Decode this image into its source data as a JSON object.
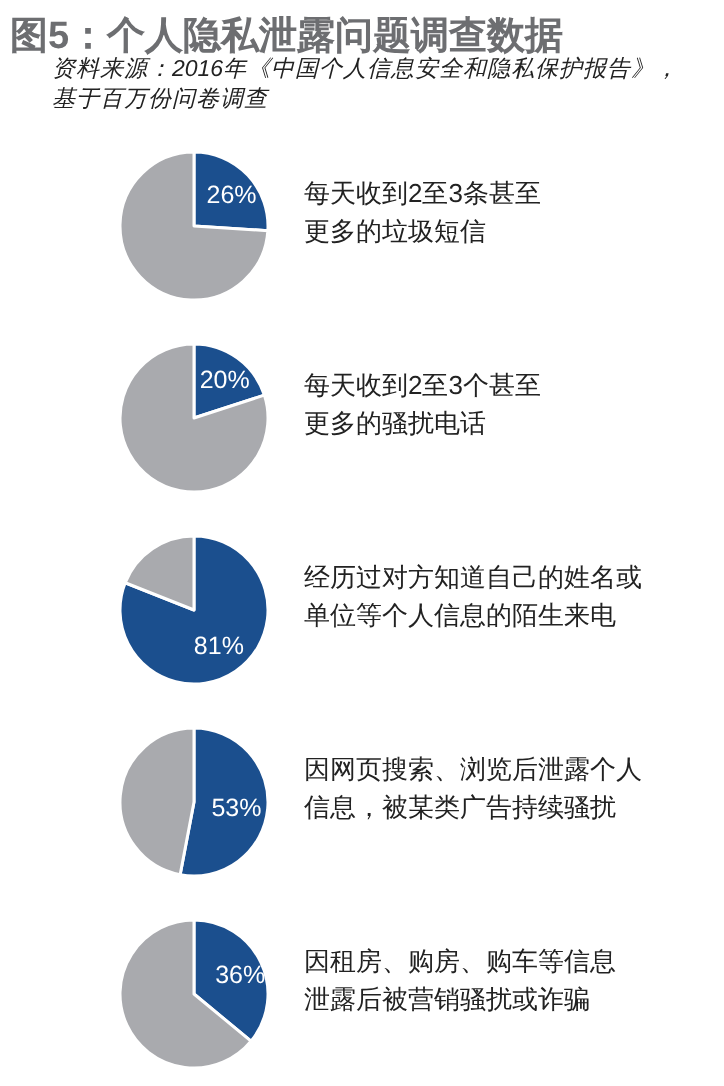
{
  "chart_data": [
    {
      "type": "pie",
      "title": "图5：个人隐私泄露问题调查数据",
      "annotations": [
        "资料来源：2016年《中国个人信息安全和隐私保护报告》，基于百万份问卷调查"
      ],
      "categories": [
        "每天收到2至3条甚至更多的垃圾短信",
        null
      ],
      "values": [
        26,
        74
      ],
      "colors": [
        "#1b4f8e",
        "#a9aaae"
      ],
      "value_labels": [
        "26%",
        null
      ]
    },
    {
      "type": "pie",
      "categories": [
        "每天收到2至3个甚至更多的骚扰电话",
        null
      ],
      "values": [
        20,
        80
      ],
      "colors": [
        "#1b4f8e",
        "#a9aaae"
      ],
      "value_labels": [
        "20%",
        null
      ]
    },
    {
      "type": "pie",
      "categories": [
        "经历过对方知道自己的姓名或单位等个人信息的陌生来电",
        null
      ],
      "values": [
        81,
        19
      ],
      "colors": [
        "#1b4f8e",
        "#a9aaae"
      ],
      "value_labels": [
        "81%",
        null
      ]
    },
    {
      "type": "pie",
      "categories": [
        "因网页搜索、浏览后泄露个人信息，被某类广告持续骚扰",
        null
      ],
      "values": [
        53,
        47
      ],
      "colors": [
        "#1b4f8e",
        "#a9aaae"
      ],
      "value_labels": [
        "53%",
        null
      ]
    },
    {
      "type": "pie",
      "categories": [
        "因租房、购房、购车等信息泄露后被营销骚扰或诈骗",
        null
      ],
      "values": [
        36,
        64
      ],
      "colors": [
        "#1b4f8e",
        "#a9aaae"
      ],
      "value_labels": [
        "36%",
        null
      ]
    }
  ]
}
